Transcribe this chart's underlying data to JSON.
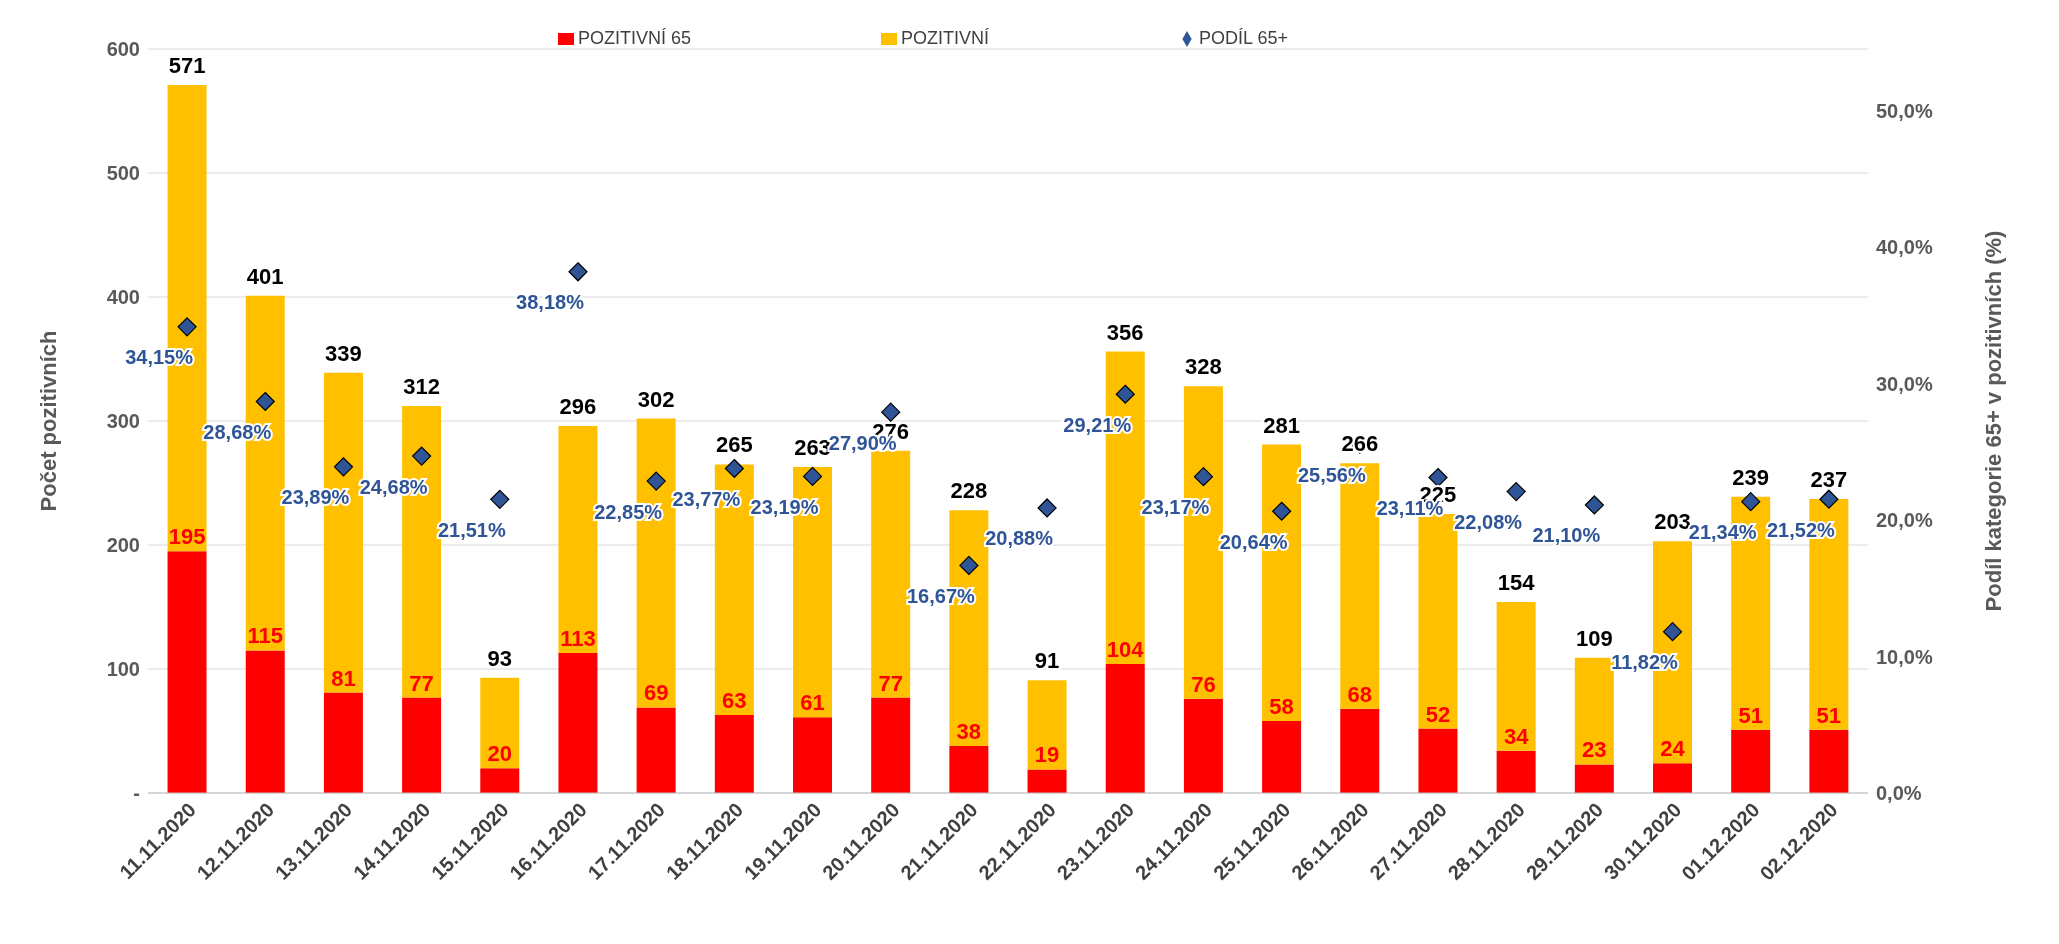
{
  "chart_data": {
    "type": "bar",
    "stacked": true,
    "categories": [
      "11.11.2020",
      "12.11.2020",
      "13.11.2020",
      "14.11.2020",
      "15.11.2020",
      "16.11.2020",
      "17.11.2020",
      "18.11.2020",
      "19.11.2020",
      "20.11.2020",
      "21.11.2020",
      "22.11.2020",
      "23.11.2020",
      "24.11.2020",
      "25.11.2020",
      "26.11.2020",
      "27.11.2020",
      "28.11.2020",
      "29.11.2020",
      "30.11.2020",
      "01.12.2020",
      "02.12.2020"
    ],
    "series": [
      {
        "name": "POZITIVNÍ 65",
        "color": "#ff0000",
        "values": [
          195,
          115,
          81,
          77,
          20,
          113,
          69,
          63,
          61,
          77,
          38,
          19,
          104,
          76,
          58,
          68,
          52,
          34,
          23,
          24,
          51,
          51
        ],
        "value_labels": [
          "195",
          "115",
          "81",
          "77",
          "20",
          "113",
          "69",
          "63",
          "61",
          "77",
          "38",
          "19",
          "104",
          "76",
          "58",
          "68",
          "52",
          "34",
          "23",
          "24",
          "51",
          "51"
        ]
      },
      {
        "name": "POZITIVNÍ",
        "color": "#ffc000",
        "values": [
          376,
          286,
          258,
          235,
          73,
          183,
          233,
          202,
          202,
          199,
          190,
          72,
          252,
          252,
          223,
          198,
          173,
          120,
          86,
          179,
          188,
          186
        ]
      },
      {
        "name": "PODÍL 65+",
        "type": "scatter",
        "axis": "y2",
        "marker": "diamond",
        "color": "#2f5597",
        "values": [
          34.15,
          28.68,
          23.89,
          24.68,
          21.51,
          38.18,
          22.85,
          23.77,
          23.19,
          27.9,
          16.67,
          20.88,
          29.21,
          23.17,
          20.64,
          25.56,
          23.11,
          22.08,
          21.1,
          11.82,
          21.34,
          21.52
        ],
        "value_labels": [
          "34,15%",
          "28,68%",
          "23,89%",
          "24,68%",
          "21,51%",
          "38,18%",
          "22,85%",
          "23,77%",
          "23,19%",
          "27,90%",
          "16,67%",
          "20,88%",
          "29,21%",
          "23,17%",
          "20,64%",
          "25,56%",
          "23,11%",
          "22,08%",
          "21,10%",
          "11,82%",
          "21,34%",
          "21,52%"
        ]
      }
    ],
    "totals": [
      "571",
      "401",
      "339",
      "312",
      "93",
      "296",
      "302",
      "265",
      "263",
      "276",
      "228",
      "91",
      "356",
      "328",
      "281",
      "266",
      "225",
      "154",
      "109",
      "203",
      "239",
      "237"
    ],
    "ylabel": "Počet pozitivních",
    "y2label": "Podíl kategorie  65+ v pozitivních  (%)",
    "ylim": [
      0,
      600
    ],
    "yticks": [
      {
        "value": 0,
        "label": "-"
      },
      100,
      200,
      300,
      400,
      500,
      600
    ],
    "y2lim": [
      0,
      54.5
    ],
    "y2ticks": [
      {
        "value": 0,
        "label": "0,0%"
      },
      {
        "value": 10,
        "label": "10,0%"
      },
      {
        "value": 20,
        "label": "20,0%"
      },
      {
        "value": 30,
        "label": "30,0%"
      },
      {
        "value": 40,
        "label": "40,0%"
      },
      {
        "value": 50,
        "label": "50,0%"
      }
    ],
    "grid": "y",
    "legend": "top"
  }
}
